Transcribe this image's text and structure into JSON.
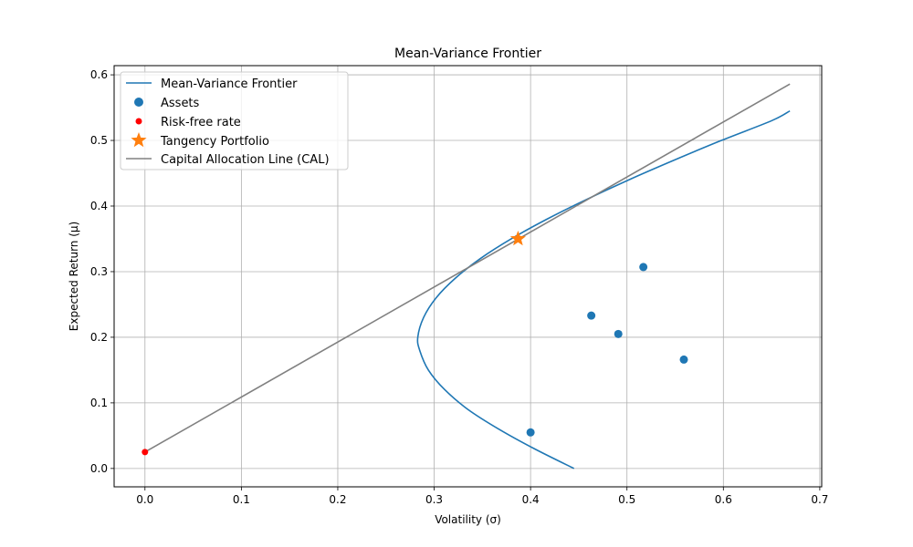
{
  "chart_data": {
    "type": "line",
    "title": "Mean-Variance Frontier",
    "xlabel": "Volatility (σ)",
    "ylabel": "Expected Return (μ)",
    "xlim": [
      -0.032,
      0.702
    ],
    "ylim": [
      -0.028,
      0.614
    ],
    "x_ticks": [
      0.0,
      0.1,
      0.2,
      0.3,
      0.4,
      0.5,
      0.6,
      0.7
    ],
    "y_ticks": [
      0.0,
      0.1,
      0.2,
      0.3,
      0.4,
      0.5,
      0.6
    ],
    "grid": true,
    "legend_position": "top-left",
    "frontier": {
      "name": "Mean-Variance Frontier",
      "color": "#1f77b4",
      "x": [
        0.445,
        0.404,
        0.367,
        0.335,
        0.311,
        0.294,
        0.285,
        0.283,
        0.289,
        0.302,
        0.322,
        0.348,
        0.38,
        0.417,
        0.458,
        0.502,
        0.549,
        0.598,
        0.65,
        0.669
      ],
      "y": [
        0.0,
        0.03,
        0.06,
        0.09,
        0.12,
        0.15,
        0.18,
        0.2,
        0.23,
        0.26,
        0.29,
        0.32,
        0.35,
        0.38,
        0.41,
        0.44,
        0.47,
        0.5,
        0.53,
        0.545
      ]
    },
    "assets": {
      "name": "Assets",
      "color": "#1f77b4",
      "points": [
        {
          "x": 0.4,
          "y": 0.055
        },
        {
          "x": 0.463,
          "y": 0.233
        },
        {
          "x": 0.491,
          "y": 0.205
        },
        {
          "x": 0.517,
          "y": 0.307
        },
        {
          "x": 0.559,
          "y": 0.166
        }
      ]
    },
    "risk_free": {
      "name": "Risk-free rate",
      "color": "#ff0000",
      "x": 0.0,
      "y": 0.025
    },
    "tangency": {
      "name": "Tangency Portfolio",
      "color": "#ff7f0e",
      "x": 0.387,
      "y": 0.35
    },
    "cal": {
      "name": "Capital Allocation Line (CAL)",
      "color": "#808080",
      "x": [
        0.0,
        0.669
      ],
      "y": [
        0.025,
        0.586
      ]
    }
  }
}
